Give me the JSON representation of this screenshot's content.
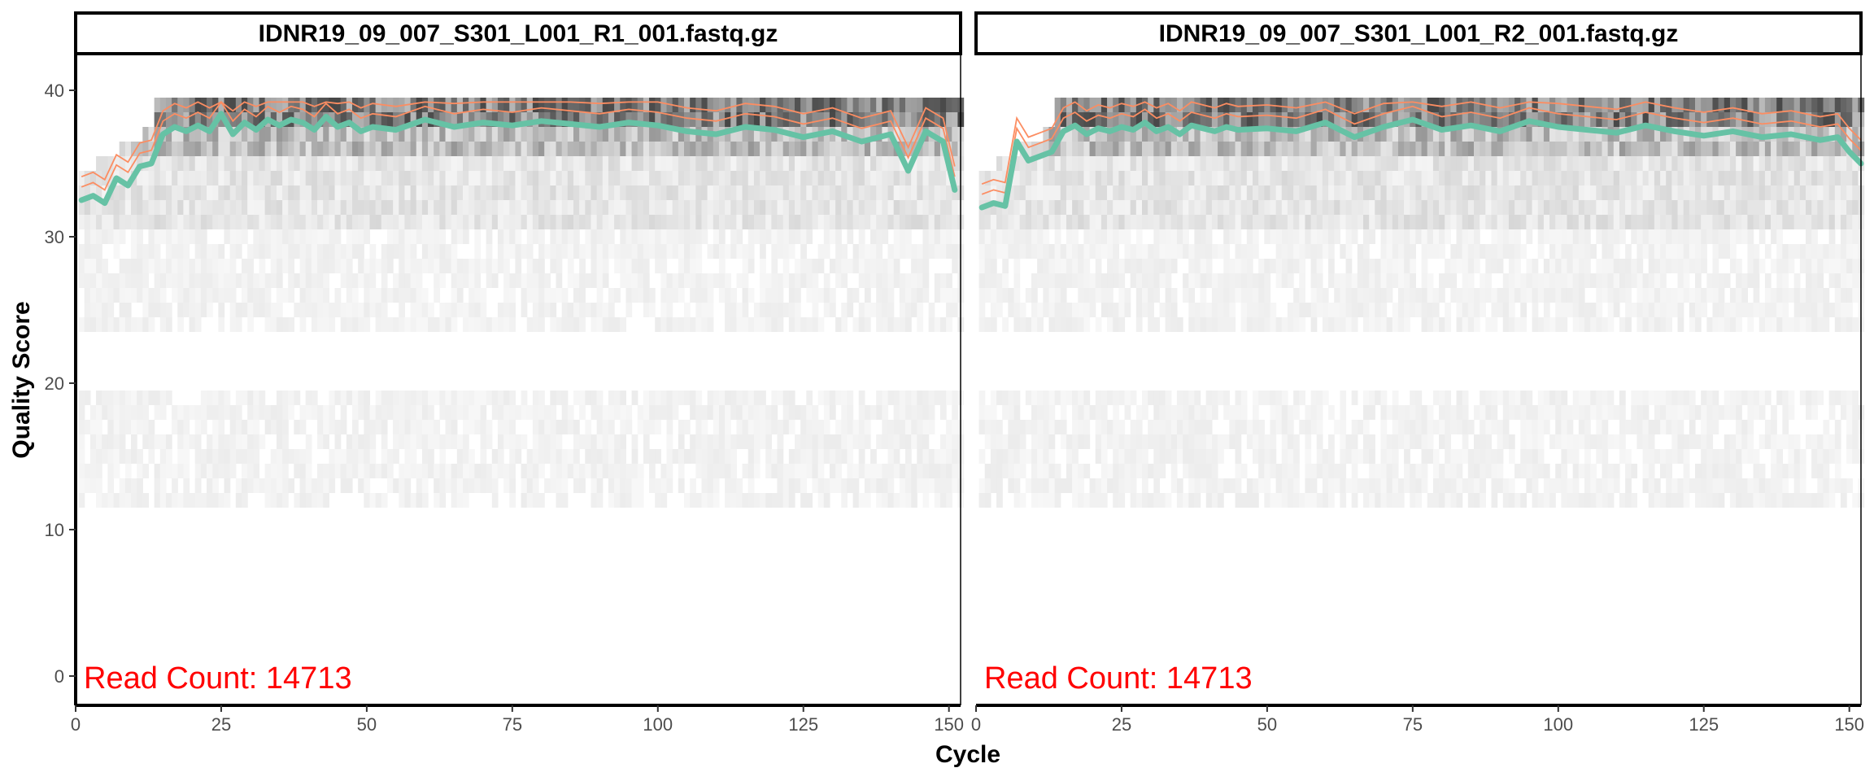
{
  "chart_data": {
    "type": "heatmap+line",
    "xlabel": "Cycle",
    "ylabel": "Quality Score",
    "xlim": [
      0,
      152
    ],
    "ylim": [
      -2,
      42.5
    ],
    "x_ticks": [
      0,
      25,
      50,
      75,
      100,
      125,
      150
    ],
    "y_ticks": [
      0,
      10,
      20,
      30,
      40
    ],
    "grid": false,
    "colors": {
      "mean_line": "#66c2a5",
      "quantile_lines": "#fc8d62",
      "annotation": "#ff0000",
      "heat_low": "#f2f2f2",
      "heat_high": "#000000"
    },
    "panels": [
      {
        "title": "IDNR19_09_007_S301_L001_R1_001.fastq.gz",
        "annotation": "Read Count:  14713",
        "mean_quality": {
          "cycles": [
            1,
            3,
            5,
            7,
            9,
            11,
            13,
            15,
            17,
            19,
            21,
            23,
            25,
            27,
            29,
            31,
            33,
            35,
            37,
            39,
            41,
            43,
            45,
            47,
            49,
            51,
            55,
            60,
            65,
            70,
            75,
            80,
            85,
            90,
            95,
            100,
            105,
            110,
            115,
            120,
            125,
            130,
            135,
            140,
            143,
            146,
            149,
            151
          ],
          "values": [
            32.5,
            32.8,
            32.3,
            34.0,
            33.5,
            34.8,
            35.0,
            37.0,
            37.5,
            37.2,
            37.6,
            37.2,
            38.4,
            37.0,
            37.8,
            37.3,
            38.0,
            37.6,
            38.0,
            37.8,
            37.3,
            38.2,
            37.5,
            37.8,
            37.2,
            37.5,
            37.3,
            38.0,
            37.5,
            37.8,
            37.6,
            37.9,
            37.7,
            37.5,
            37.8,
            37.6,
            37.2,
            37.0,
            37.5,
            37.3,
            36.8,
            37.2,
            36.5,
            37.0,
            34.5,
            37.2,
            36.5,
            33.2
          ]
        }
      },
      {
        "title": "IDNR19_09_007_S301_L001_R2_001.fastq.gz",
        "annotation": "Read Count:  14713",
        "mean_quality": {
          "cycles": [
            1,
            3,
            5,
            7,
            9,
            11,
            13,
            15,
            17,
            19,
            21,
            23,
            25,
            27,
            29,
            31,
            33,
            35,
            37,
            39,
            41,
            43,
            45,
            50,
            55,
            60,
            65,
            70,
            75,
            80,
            85,
            90,
            95,
            100,
            105,
            110,
            115,
            120,
            125,
            130,
            135,
            140,
            145,
            148,
            150,
            152
          ],
          "values": [
            32.0,
            32.3,
            32.1,
            36.5,
            35.2,
            35.5,
            35.8,
            37.2,
            37.6,
            37.0,
            37.4,
            37.2,
            37.5,
            37.3,
            37.8,
            37.2,
            37.5,
            37.0,
            37.6,
            37.4,
            37.2,
            37.5,
            37.3,
            37.4,
            37.2,
            37.8,
            36.8,
            37.5,
            38.0,
            37.3,
            37.6,
            37.2,
            37.9,
            37.5,
            37.3,
            37.1,
            37.6,
            37.2,
            36.9,
            37.2,
            36.8,
            37.0,
            36.6,
            36.8,
            35.8,
            35.0
          ]
        }
      }
    ]
  }
}
